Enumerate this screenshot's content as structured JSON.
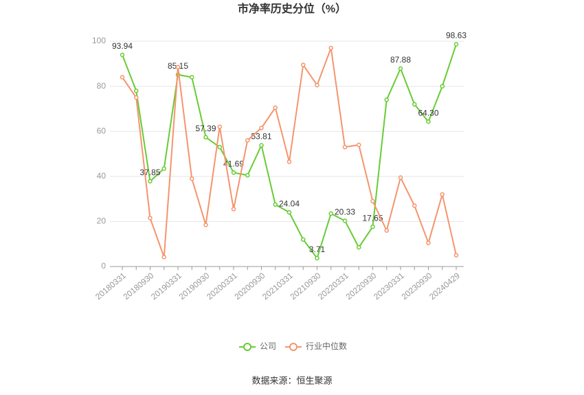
{
  "chart_data": {
    "type": "line",
    "title": "市净率历史分位（%）",
    "source": "数据来源：恒生聚源",
    "categories": [
      "20180331",
      null,
      "20180930",
      null,
      "20190331",
      null,
      "20190930",
      null,
      "20200331",
      null,
      "20200930",
      null,
      "20210331",
      null,
      "20210930",
      null,
      "20220331",
      null,
      "20220930",
      null,
      "20230331",
      null,
      "20230930",
      null,
      "20240429"
    ],
    "series": [
      {
        "name": "公司",
        "color": "#66cc33",
        "values": [
          93.94,
          78,
          37.85,
          43.5,
          85.15,
          84,
          57.39,
          53,
          41.69,
          40.5,
          53.81,
          27.5,
          24.04,
          12,
          3.71,
          23.5,
          20.33,
          8.5,
          17.65,
          74,
          87.88,
          72,
          64.3,
          80,
          98.63
        ],
        "value_labels": [
          "93.94",
          null,
          "37.85",
          null,
          "85.15",
          null,
          "57.39",
          null,
          "41.69",
          null,
          "53.81",
          null,
          "24.04",
          null,
          "3.71",
          null,
          "20.33",
          null,
          "17.65",
          null,
          "87.88",
          null,
          "64.30",
          null,
          "98.63"
        ]
      },
      {
        "name": "行业中位数",
        "color": "#f5946c",
        "values": [
          84,
          75,
          21.5,
          4.2,
          88.5,
          39,
          18.5,
          62,
          25.5,
          56,
          61.5,
          70.5,
          46.5,
          89.5,
          80.5,
          97,
          53,
          54,
          29,
          16,
          39.5,
          27,
          10.5,
          32,
          5
        ]
      }
    ],
    "ylim": [
      0,
      100
    ],
    "yticks": [
      0,
      20,
      40,
      60,
      80,
      100
    ],
    "grid": true,
    "legend": "bottom"
  }
}
